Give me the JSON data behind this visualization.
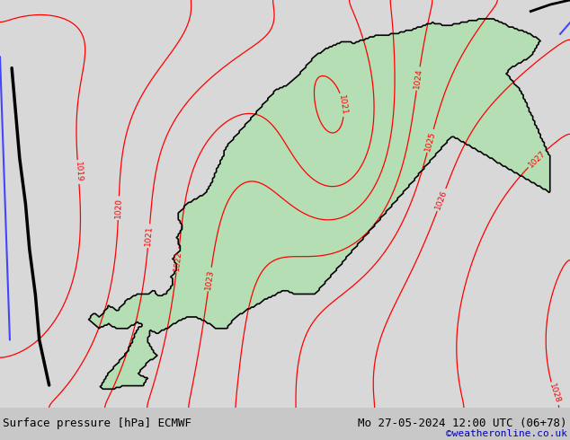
{
  "title_left": "Surface pressure [hPa] ECMWF",
  "title_right": "Mo 27-05-2024 12:00 UTC (06+78)",
  "copyright": "©weatheronline.co.uk",
  "background_land_color": "#b5deb5",
  "background_sea_color": "#d8d8d8",
  "contour_color": "#ff0000",
  "contour_blue_color": "#4444ff",
  "contour_black_color": "#000000",
  "border_color": "#000000",
  "bottom_bar_color": "#c8c8c8",
  "figsize": [
    6.34,
    4.9
  ],
  "dpi": 100
}
